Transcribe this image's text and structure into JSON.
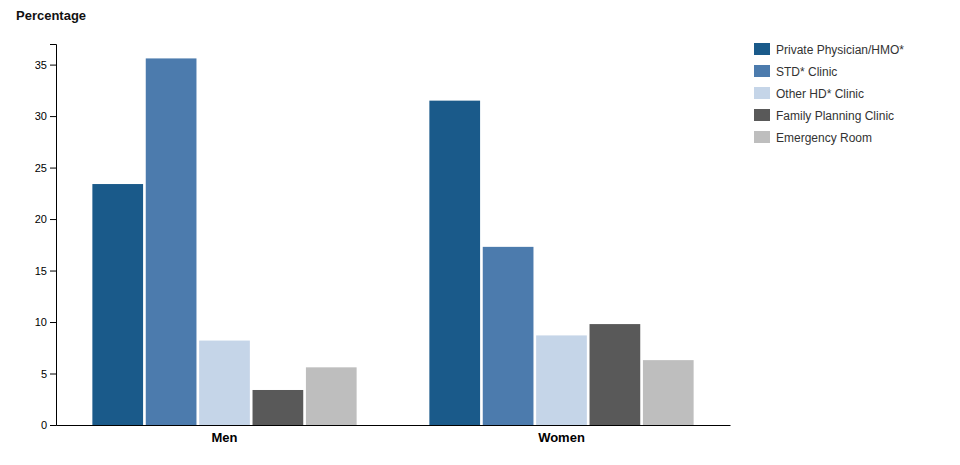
{
  "chart_data": {
    "type": "bar",
    "ylabel": "Percentage",
    "categories": [
      "Men",
      "Women"
    ],
    "series": [
      {
        "name": "Private Physician/HMO*",
        "color": "#1A5A8A",
        "values": [
          23.4,
          31.5
        ]
      },
      {
        "name": "STD* Clinic",
        "color": "#4C7BAD",
        "values": [
          35.6,
          17.3
        ]
      },
      {
        "name": "Other HD* Clinic",
        "color": "#C5D5E8",
        "values": [
          8.2,
          8.7
        ]
      },
      {
        "name": "Family Planning Clinic",
        "color": "#595959",
        "values": [
          3.4,
          9.8
        ]
      },
      {
        "name": "Emergency Room",
        "color": "#BEBEBE",
        "values": [
          5.6,
          6.3
        ]
      }
    ],
    "ylim": [
      0,
      37
    ],
    "yticks": [
      0,
      5,
      10,
      15,
      20,
      25,
      30,
      35
    ],
    "grid": false,
    "legend": "upper right"
  }
}
